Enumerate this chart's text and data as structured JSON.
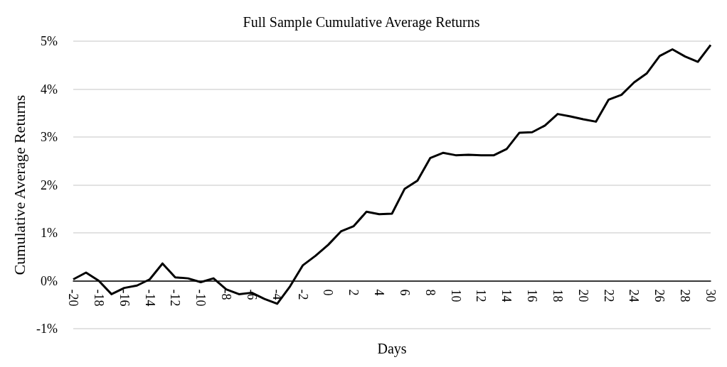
{
  "chart_data": {
    "type": "line",
    "title": "Full Sample Cumulative Average Returns",
    "xlabel": "Days",
    "ylabel": "Cumulative Average Returns",
    "categories": [
      "-20",
      null,
      "-18",
      null,
      "-16",
      null,
      "-14",
      null,
      "-12",
      null,
      "-10",
      null,
      "-8",
      null,
      "-6",
      null,
      "-4",
      null,
      "-2",
      null,
      "0",
      null,
      "2",
      null,
      "4",
      null,
      "6",
      null,
      "8",
      null,
      "10",
      null,
      "12",
      null,
      "14",
      null,
      "16",
      null,
      "18",
      null,
      "20",
      null,
      "22",
      null,
      "24",
      null,
      "26",
      null,
      "28",
      null,
      "30"
    ],
    "series": [
      {
        "color": "#000000",
        "values": [
          0.03,
          0.17,
          0.0,
          -0.28,
          -0.15,
          -0.1,
          0.03,
          0.36,
          0.07,
          0.05,
          -0.03,
          0.05,
          -0.18,
          -0.28,
          -0.25,
          -0.38,
          -0.48,
          -0.12,
          0.32,
          0.52,
          0.75,
          1.03,
          1.14,
          1.44,
          1.39,
          1.4,
          1.92,
          2.09,
          2.56,
          2.67,
          2.62,
          2.63,
          2.62,
          2.62,
          2.75,
          3.09,
          3.1,
          3.24,
          3.48,
          3.43,
          3.37,
          3.32,
          3.78,
          3.88,
          4.14,
          4.33,
          4.69,
          4.83,
          4.68,
          4.57,
          4.92
        ]
      }
    ],
    "ylim": [
      -1,
      5
    ],
    "yticks": [
      {
        "value": -1,
        "label": "-1%"
      },
      {
        "value": 0,
        "label": "0%"
      },
      {
        "value": 1,
        "label": "1%"
      },
      {
        "value": 2,
        "label": "2%"
      },
      {
        "value": 3,
        "label": "3%"
      },
      {
        "value": 4,
        "label": "4%"
      },
      {
        "value": 5,
        "label": "5%"
      }
    ],
    "grid": "y",
    "marker": "none",
    "line_style": "solid"
  }
}
